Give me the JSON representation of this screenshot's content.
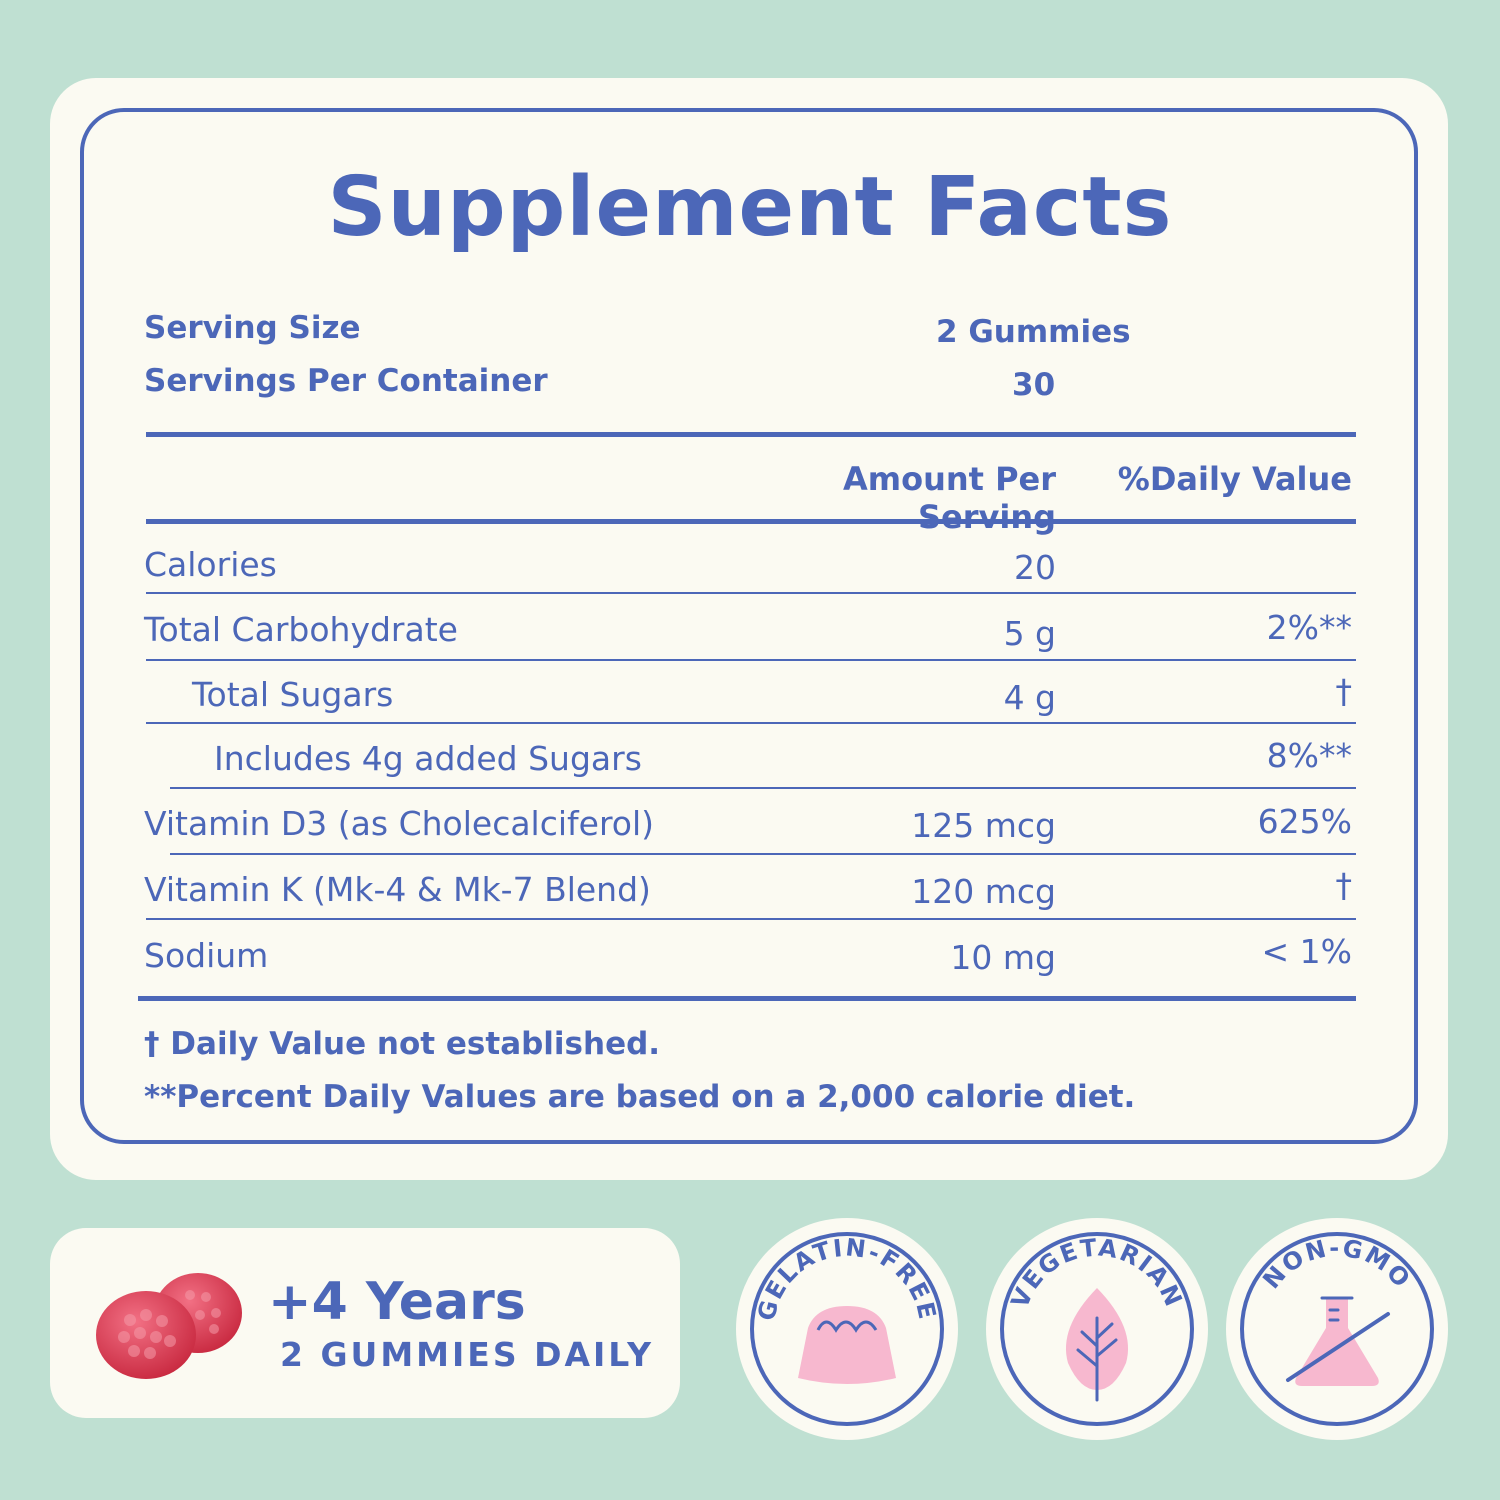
{
  "title": "Supplement Facts",
  "serving": {
    "size_label": "Serving Size",
    "size_value": "2 Gummies",
    "per_container_label": "Servings Per Container",
    "per_container_value": "30"
  },
  "columns": {
    "amount": "Amount Per Serving",
    "daily_value": "%Daily Value"
  },
  "rows": [
    {
      "name": "Calories",
      "amount": "20",
      "dv": ""
    },
    {
      "name": "Total Carbohydrate",
      "amount": "5 g",
      "dv": "2%**"
    },
    {
      "name": "Total Sugars",
      "amount": "4 g",
      "dv": "†"
    },
    {
      "name": "Includes 4g added Sugars",
      "amount": "",
      "dv": "8%**"
    },
    {
      "name": "Vitamin D3  (as Cholecalciferol)",
      "amount": "125 mcg",
      "dv": "625%"
    },
    {
      "name": "Vitamin K  (Mk-4 & Mk-7 Blend)",
      "amount": "120 mcg",
      "dv": "†"
    },
    {
      "name": "Sodium",
      "amount": "10 mg",
      "dv": "< 1%"
    }
  ],
  "footnotes": [
    "† Daily Value not established.",
    "**Percent Daily Values are based on a 2,000 calorie diet."
  ],
  "dosage": {
    "age": "+4 Years",
    "daily": "2 GUMMIES DAILY"
  },
  "badges": [
    {
      "label": "GELATIN-FREE",
      "icon": "jelly-icon"
    },
    {
      "label": "VEGETARIAN",
      "icon": "leaf-icon"
    },
    {
      "label": "NON-GMO",
      "icon": "flask-crossed-icon"
    }
  ],
  "colors": {
    "background": "#bfe0d2",
    "card": "#fbfaf2",
    "text": "#4c67b8",
    "pink": "#f7b8cf",
    "gummy": "#e0485f"
  }
}
